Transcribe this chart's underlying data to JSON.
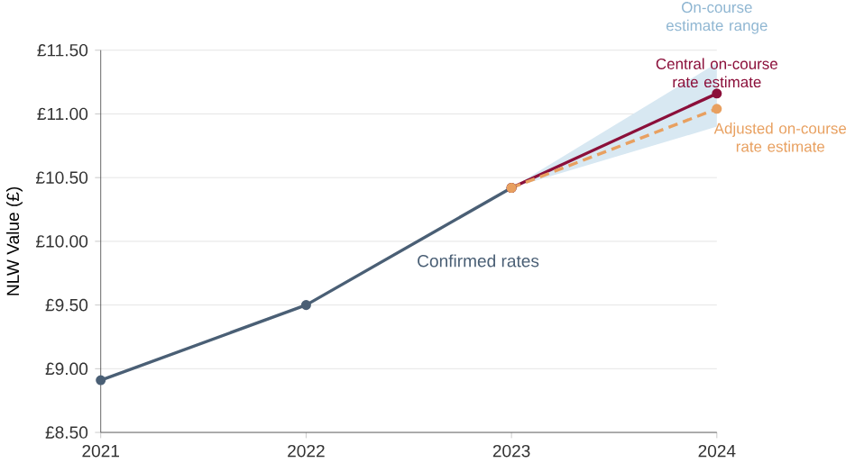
{
  "chart_data": {
    "type": "line",
    "ylabel": "NLW Value (£)",
    "xlim": [
      2021,
      2024
    ],
    "xticks": [
      2021,
      2022,
      2023,
      2024
    ],
    "ylim": [
      8.5,
      11.5
    ],
    "yticks": [
      {
        "value": 8.5,
        "label": "£8.50"
      },
      {
        "value": 9.0,
        "label": "£9.00"
      },
      {
        "value": 9.5,
        "label": "£9.50"
      },
      {
        "value": 10.0,
        "label": "£10.00"
      },
      {
        "value": 10.5,
        "label": "£10.50"
      },
      {
        "value": 11.0,
        "label": "£11.00"
      },
      {
        "value": 11.5,
        "label": "£11.50"
      }
    ],
    "grid": "y",
    "marker": "circle",
    "annotations": [
      {
        "text": "On-course estimate range",
        "x": 2024,
        "y": 11.4
      }
    ],
    "series": [
      {
        "name": "Confirmed rates",
        "color": "#4a5f75",
        "x": [
          2021,
          2022,
          2023
        ],
        "values": [
          8.91,
          9.5,
          10.42
        ]
      },
      {
        "name": "Central on-course rate estimate",
        "color": "#8b0f3a",
        "x": [
          2023,
          2024
        ],
        "values": [
          10.42,
          11.16
        ],
        "lower": [
          10.42,
          10.9
        ],
        "upper": [
          10.42,
          11.4
        ]
      },
      {
        "name": "Adjusted on-course rate estimate",
        "color": "#e8a060",
        "line_style": "dashed",
        "x": [
          2023,
          2024
        ],
        "values": [
          10.42,
          11.04
        ]
      }
    ]
  }
}
